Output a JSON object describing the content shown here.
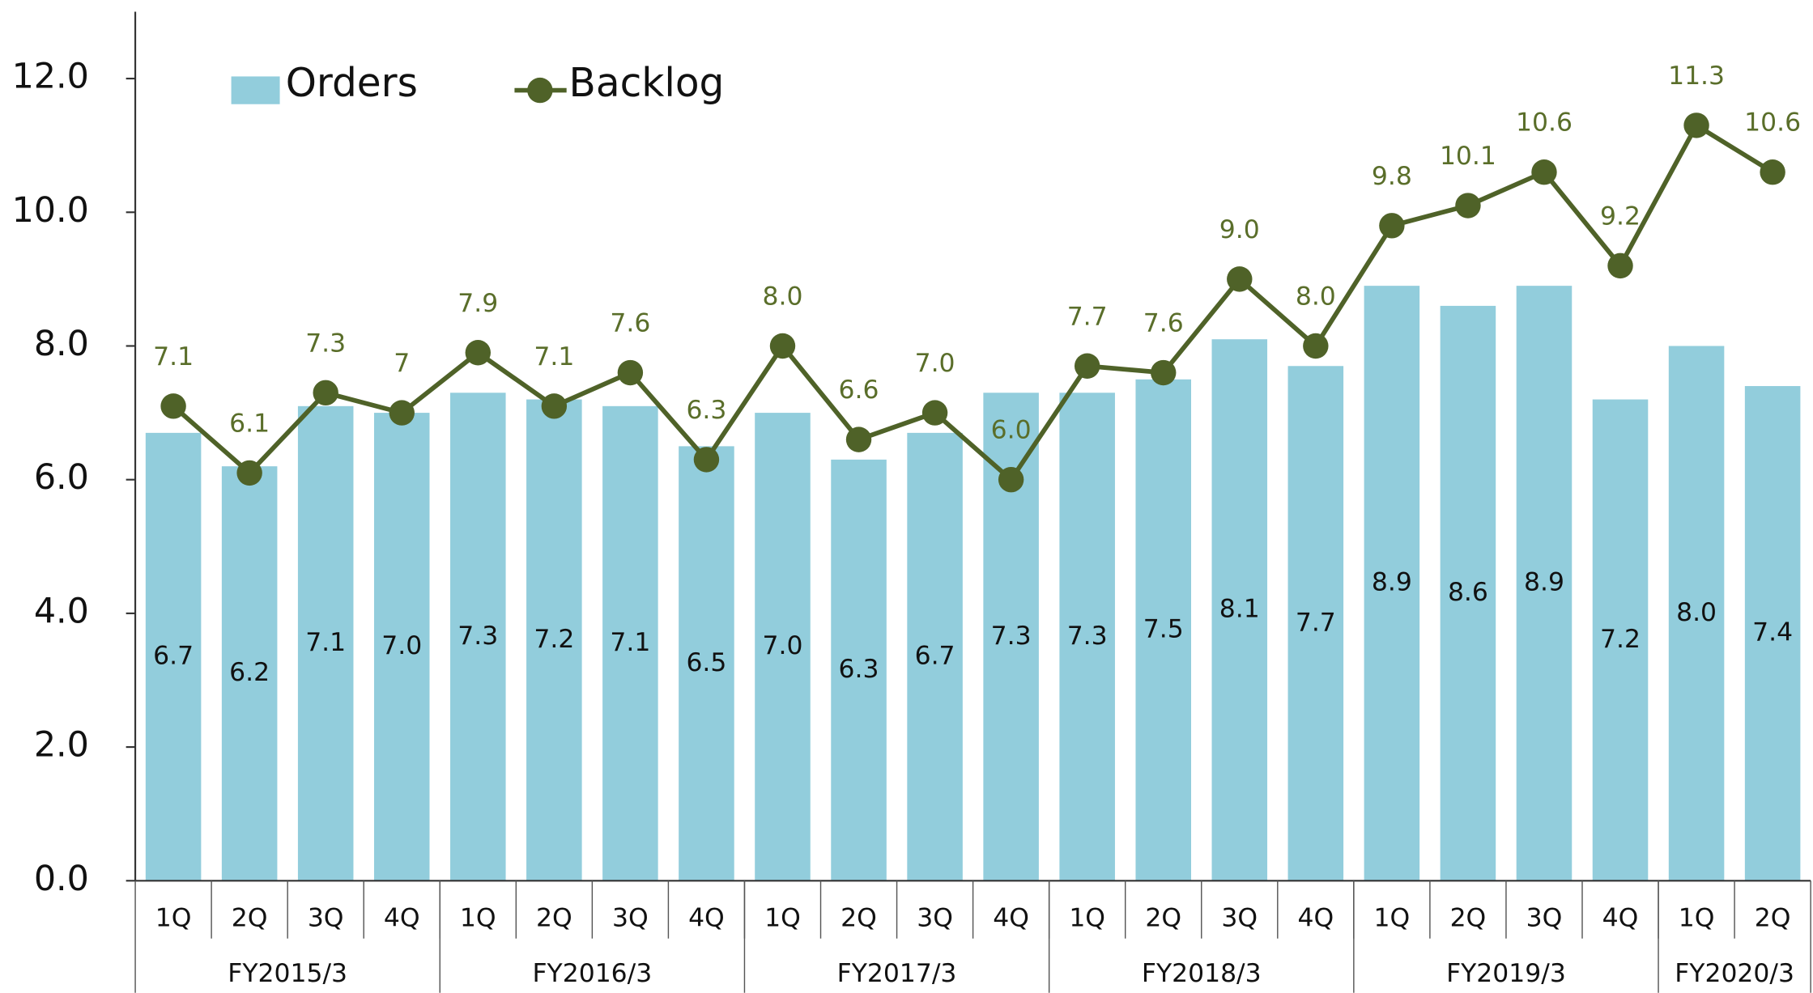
{
  "chart_data": {
    "type": "bar_line",
    "categories": [
      "1Q",
      "2Q",
      "3Q",
      "4Q",
      "1Q",
      "2Q",
      "3Q",
      "4Q",
      "1Q",
      "2Q",
      "3Q",
      "4Q",
      "1Q",
      "2Q",
      "3Q",
      "4Q",
      "1Q",
      "2Q",
      "3Q",
      "4Q",
      "1Q",
      "2Q"
    ],
    "groups": [
      {
        "label": "FY2015/3",
        "span": 4
      },
      {
        "label": "FY2016/3",
        "span": 4
      },
      {
        "label": "FY2017/3",
        "span": 4
      },
      {
        "label": "FY2018/3",
        "span": 4
      },
      {
        "label": "FY2019/3",
        "span": 4
      },
      {
        "label": "FY2020/3",
        "span": 2
      }
    ],
    "series": [
      {
        "name": "Orders",
        "type": "bar",
        "color": "#92cddc",
        "values": [
          6.7,
          6.2,
          7.1,
          7.0,
          7.3,
          7.2,
          7.1,
          6.5,
          7.0,
          6.3,
          6.7,
          7.3,
          7.3,
          7.5,
          8.1,
          7.7,
          8.9,
          8.6,
          8.9,
          7.2,
          8.0,
          7.4
        ],
        "value_labels": [
          "6.7",
          "6.2",
          "7.1",
          "7.0",
          "7.3",
          "7.2",
          "7.1",
          "6.5",
          "7.0",
          "6.3",
          "6.7",
          "7.3",
          "7.3",
          "7.5",
          "8.1",
          "7.7",
          "8.9",
          "8.6",
          "8.9",
          "7.2",
          "8.0",
          "7.4"
        ]
      },
      {
        "name": "Backlog",
        "type": "line",
        "color": "#4f6228",
        "values": [
          7.1,
          6.1,
          7.3,
          7,
          7.9,
          7.1,
          7.6,
          6.3,
          8.0,
          6.6,
          7.0,
          6.0,
          7.7,
          7.6,
          9.0,
          8.0,
          9.8,
          10.1,
          10.6,
          9.2,
          11.3,
          10.6
        ],
        "value_labels": [
          "7.1",
          "6.1",
          "7.3",
          "7",
          "7.9",
          "7.1",
          "7.6",
          "6.3",
          "8.0",
          "6.6",
          "7.0",
          "6.0",
          "7.7",
          "7.6",
          "9.0",
          "8.0",
          "9.8",
          "10.1",
          "10.6",
          "9.2",
          "11.3",
          "10.6"
        ]
      }
    ],
    "ylim": [
      0,
      13
    ],
    "yticks": [
      {
        "value": 0,
        "label": "0.0"
      },
      {
        "value": 2,
        "label": "2.0"
      },
      {
        "value": 4,
        "label": "4.0"
      },
      {
        "value": 6,
        "label": "6.0"
      },
      {
        "value": 8,
        "label": "8.0"
      },
      {
        "value": 10,
        "label": "10.0"
      },
      {
        "value": 12,
        "label": "12.0"
      }
    ],
    "legend": "top-left"
  }
}
